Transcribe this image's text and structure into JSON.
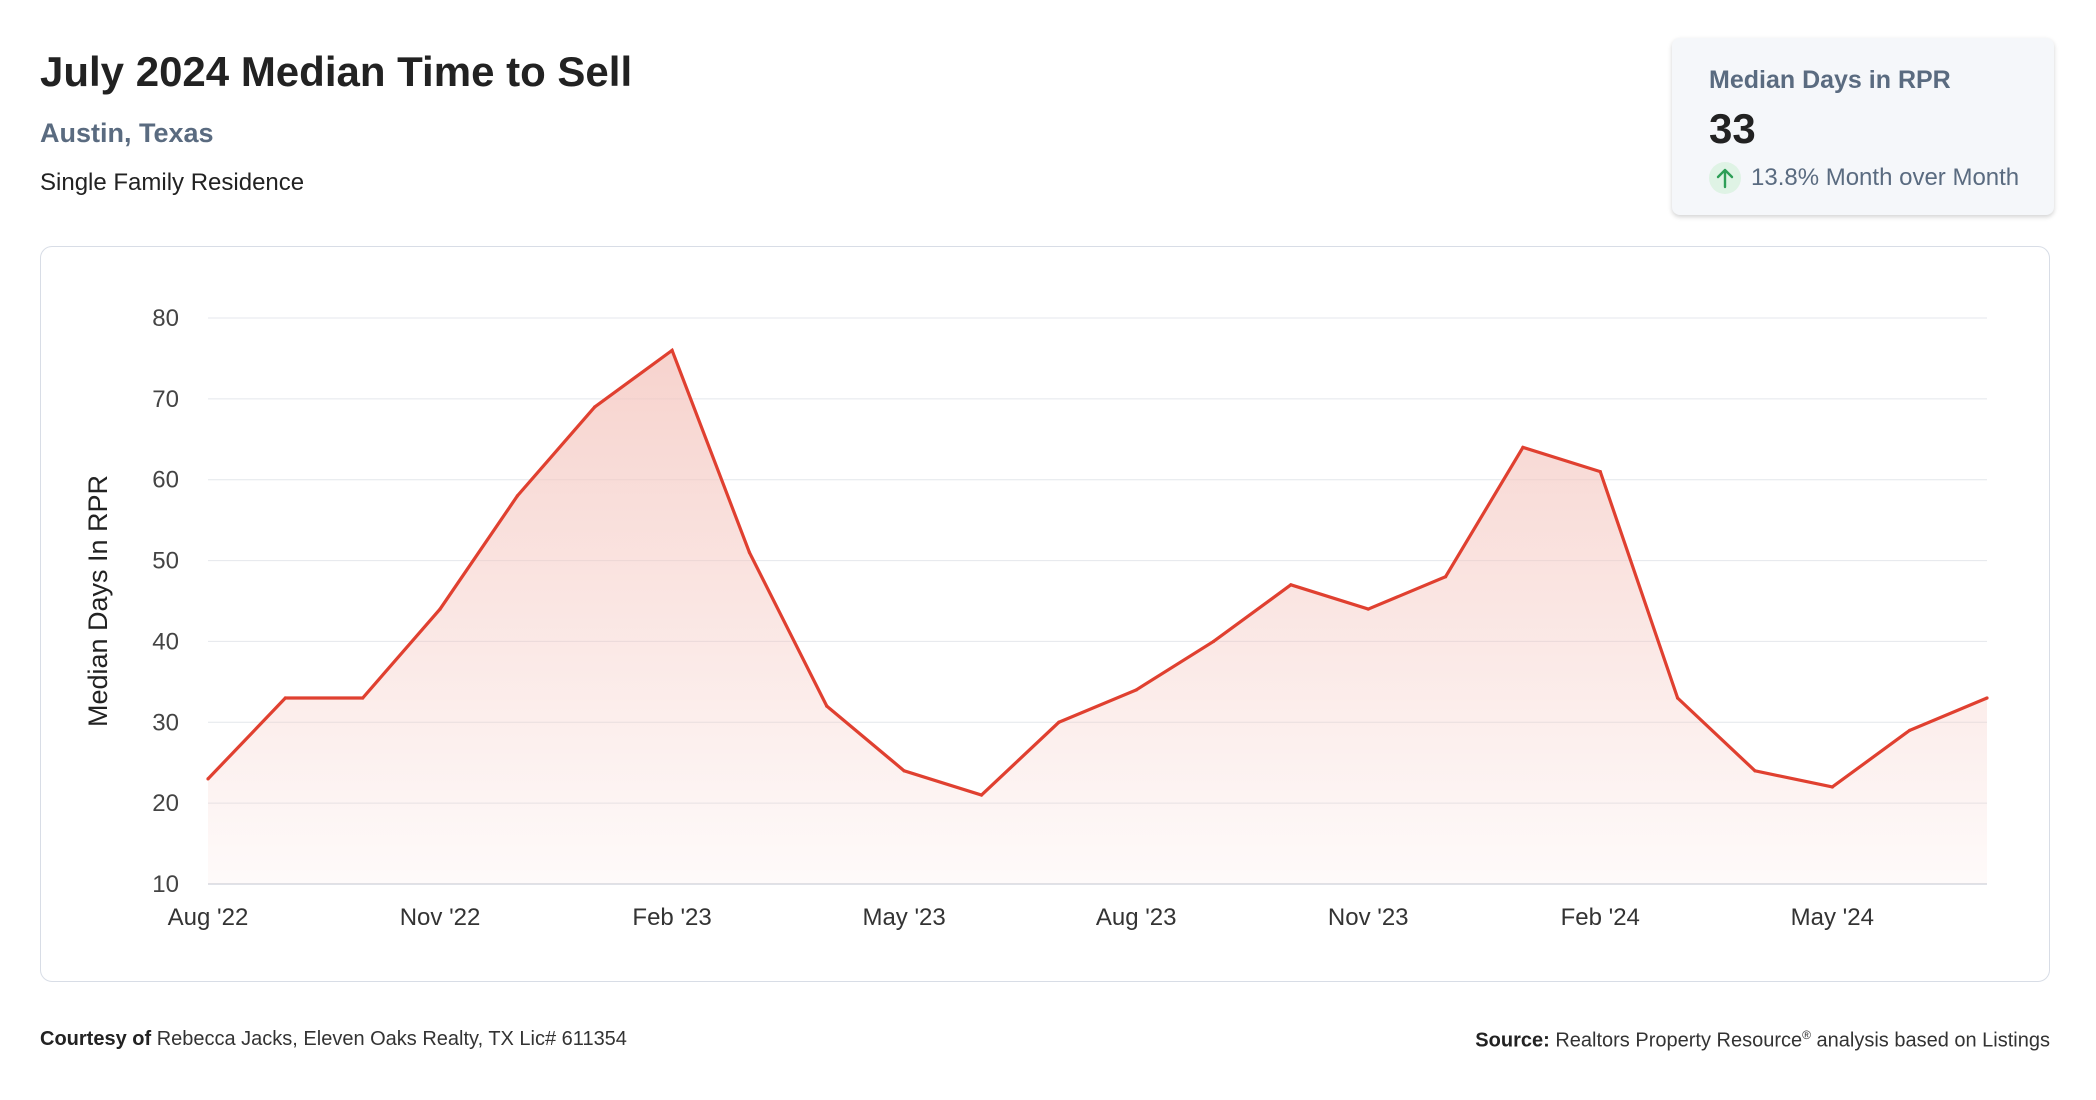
{
  "header": {
    "title": "July 2024 Median Time to Sell",
    "location": "Austin, Texas",
    "property_type": "Single Family Residence"
  },
  "stat_card": {
    "label": "Median Days in RPR",
    "value": "33",
    "change": "13.8% Month over Month",
    "change_icon": "arrow-up-icon",
    "change_color": "#2e9e57"
  },
  "chart_data": {
    "type": "area",
    "ylabel": "Median Days In RPR",
    "xlabel": "",
    "ylim": [
      10,
      80
    ],
    "yticks": [
      10,
      20,
      30,
      40,
      50,
      60,
      70,
      80
    ],
    "grid": true,
    "x": [
      "Aug '22",
      "Sep '22",
      "Oct '22",
      "Nov '22",
      "Dec '22",
      "Jan '23",
      "Feb '23",
      "Mar '23",
      "Apr '23",
      "May '23",
      "Jun '23",
      "Jul '23",
      "Aug '23",
      "Sep '23",
      "Oct '23",
      "Nov '23",
      "Dec '23",
      "Jan '24",
      "Feb '24",
      "Mar '24",
      "Apr '24",
      "May '24",
      "Jun '24",
      "Jul '24"
    ],
    "xtick_labels": [
      "Aug '22",
      "Nov '22",
      "Feb '23",
      "May '23",
      "Aug '23",
      "Nov '23",
      "Feb '24",
      "May '24"
    ],
    "series": [
      {
        "values": [
          23,
          33,
          33,
          44,
          58,
          69,
          76,
          51,
          32,
          24,
          21,
          30,
          34,
          40,
          47,
          44,
          48,
          64,
          61,
          33,
          24,
          22,
          29,
          33
        ]
      }
    ],
    "line_color": "#e04030",
    "fill_color": "#f4c4bd"
  },
  "footer": {
    "courtesy_label": "Courtesy of",
    "courtesy_text": "Rebecca Jacks, Eleven Oaks Realty, TX Lic# 611354",
    "source_label": "Source:",
    "source_text_1": "Realtors Property Resource",
    "source_reg": "®",
    "source_text_2": " analysis based on Listings"
  }
}
